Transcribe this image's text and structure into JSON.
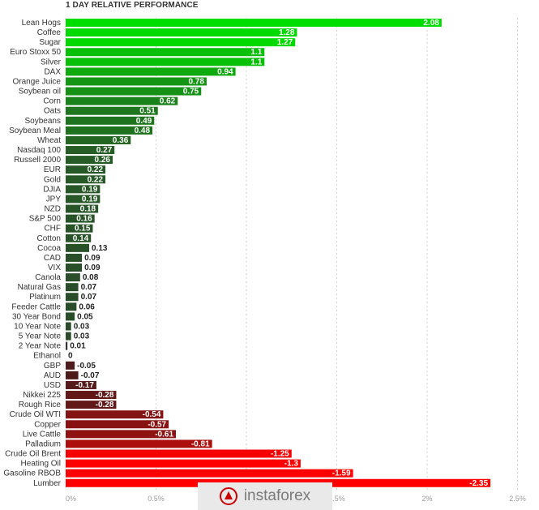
{
  "chart_data": {
    "type": "bar",
    "orientation": "horizontal",
    "title": "1 DAY RELATIVE PERFORMANCE",
    "categories": [
      "Lean Hogs",
      "Coffee",
      "Sugar",
      "Euro Stoxx 50",
      "Silver",
      "DAX",
      "Orange Juice",
      "Soybean oil",
      "Corn",
      "Oats",
      "Soybeans",
      "Soybean Meal",
      "Wheat",
      "Nasdaq 100",
      "Russell 2000",
      "EUR",
      "Gold",
      "DJIA",
      "JPY",
      "NZD",
      "S&P 500",
      "CHF",
      "Cotton",
      "Cocoa",
      "CAD",
      "VIX",
      "Canola",
      "Natural Gas",
      "Platinum",
      "Feeder Cattle",
      "30 Year Bond",
      "10 Year Note",
      "5 Year Note",
      "2 Year Note",
      "Ethanol",
      "GBP",
      "AUD",
      "USD",
      "Nikkei 225",
      "Rough Rice",
      "Crude Oil WTI",
      "Copper",
      "Live Cattle",
      "Palladium",
      "Crude Oil Brent",
      "Heating Oil",
      "Gasoline RBOB",
      "Lumber"
    ],
    "values": [
      2.08,
      1.28,
      1.27,
      1.1,
      1.1,
      0.94,
      0.78,
      0.75,
      0.62,
      0.51,
      0.49,
      0.48,
      0.36,
      0.27,
      0.26,
      0.22,
      0.22,
      0.19,
      0.19,
      0.18,
      0.16,
      0.15,
      0.14,
      0.13,
      0.09,
      0.09,
      0.08,
      0.07,
      0.07,
      0.06,
      0.05,
      0.03,
      0.03,
      0.01,
      0,
      -0.05,
      -0.07,
      -0.17,
      -0.28,
      -0.28,
      -0.54,
      -0.57,
      -0.61,
      -0.81,
      -1.25,
      -1.3,
      -1.59,
      -2.35
    ],
    "value_labels": [
      "2.08",
      "1.28",
      "1.27",
      "1.1",
      "1.1",
      "0.94",
      "0.78",
      "0.75",
      "0.62",
      "0.51",
      "0.49",
      "0.48",
      "0.36",
      "0.27",
      "0.26",
      "0.22",
      "0.22",
      "0.19",
      "0.19",
      "0.18",
      "0.16",
      "0.15",
      "0.14",
      "0.13",
      "0.09",
      "0.09",
      "0.08",
      "0.07",
      "0.07",
      "0.06",
      "0.05",
      "0.03",
      "0.03",
      "0.01",
      "0",
      "-0.05",
      "-0.07",
      "-0.17",
      "-0.28",
      "-0.28",
      "-0.54",
      "-0.57",
      "-0.61",
      "-0.81",
      "-1.25",
      "-1.3",
      "-1.59",
      "-2.35"
    ],
    "xlim": [
      0,
      2.5
    ],
    "xticks": [
      {
        "value": 0,
        "label": "0%"
      },
      {
        "value": 0.5,
        "label": "0.5%"
      },
      {
        "value": 1,
        "label": "1%"
      },
      {
        "value": 1.5,
        "label": "1.5%"
      },
      {
        "value": 2,
        "label": "2%"
      },
      {
        "value": 2.5,
        "label": "2.5%"
      }
    ],
    "grid": true,
    "bar_length": "absolute value",
    "colors": {
      "strong_positive": "#00dd00",
      "weak_positive": "#2a4a2a",
      "neutral": "#333333",
      "weak_negative": "#4a1c1c",
      "strong_negative": "#ff0000"
    }
  },
  "watermark": {
    "text": "instaforex",
    "logo_color": "#cc0000"
  }
}
